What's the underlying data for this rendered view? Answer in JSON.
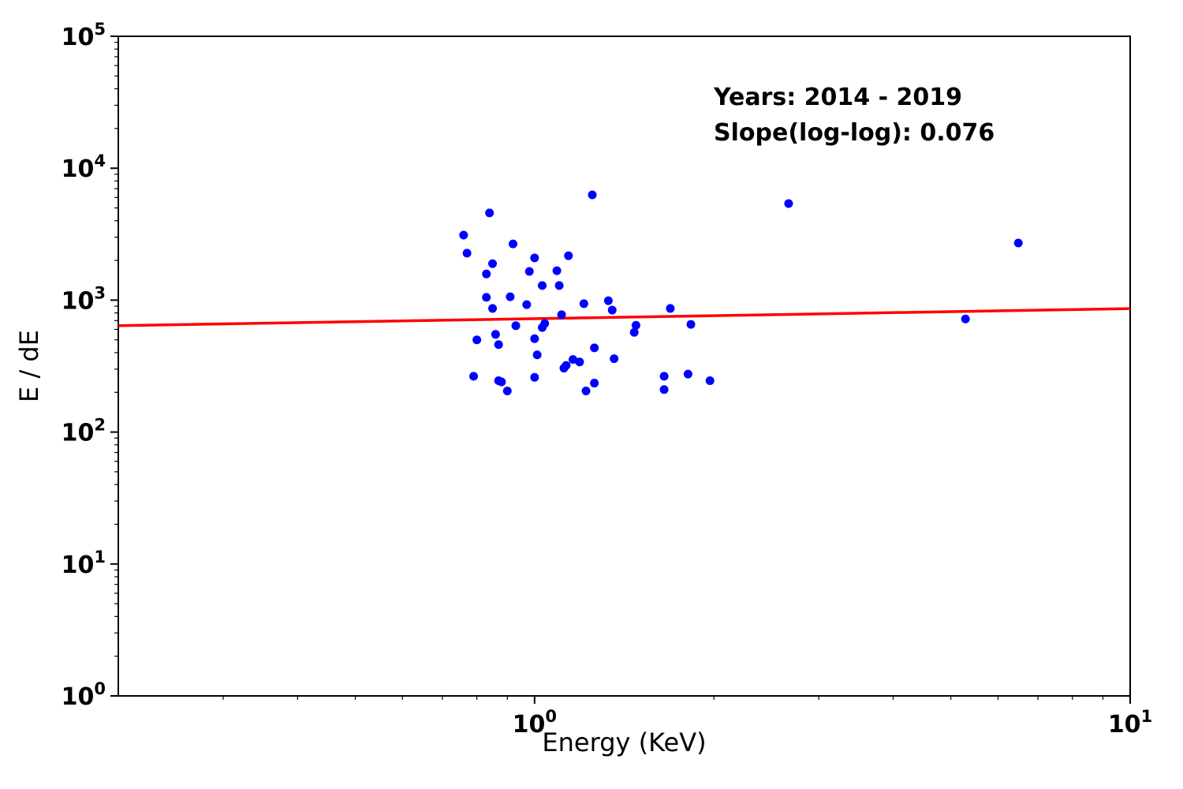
{
  "figure": {
    "background": "#ffffff",
    "annotation": {
      "line1": "Years: 2014 - 2019",
      "line2": "Slope(log-log): 0.076"
    }
  },
  "chart_data": {
    "type": "scatter",
    "title": "",
    "xlabel": "Energy (KeV)",
    "ylabel": "E / dE",
    "x_scale": "log",
    "y_scale": "log",
    "xlim": [
      0.2,
      10
    ],
    "ylim": [
      1,
      100000
    ],
    "grid": false,
    "tick_base": "10",
    "x_major_tick_exponents": [
      0,
      1
    ],
    "y_major_tick_exponents": [
      0,
      1,
      2,
      3,
      4,
      5
    ],
    "annotations": [
      "Years: 2014 - 2019",
      "Slope(log-log): 0.076"
    ],
    "colors": {
      "points": "#0000ff",
      "trendline": "#ff0000",
      "axes": "#000000",
      "text": "#000000"
    },
    "points": [
      [
        1.25,
        6280
      ],
      [
        0.84,
        4580
      ],
      [
        0.76,
        3110
      ],
      [
        0.92,
        2670
      ],
      [
        0.77,
        2270
      ],
      [
        1.0,
        2090
      ],
      [
        1.14,
        2170
      ],
      [
        0.85,
        1890
      ],
      [
        0.98,
        1650
      ],
      [
        1.09,
        1670
      ],
      [
        0.83,
        1580
      ],
      [
        1.03,
        1290
      ],
      [
        1.1,
        1290
      ],
      [
        0.83,
        1050
      ],
      [
        0.91,
        1060
      ],
      [
        0.85,
        865
      ],
      [
        0.97,
        925
      ],
      [
        1.21,
        940
      ],
      [
        1.33,
        990
      ],
      [
        1.35,
        840
      ],
      [
        1.11,
        775
      ],
      [
        0.93,
        640
      ],
      [
        1.03,
        620
      ],
      [
        1.04,
        665
      ],
      [
        1.48,
        645
      ],
      [
        1.47,
        570
      ],
      [
        0.8,
        500
      ],
      [
        0.86,
        550
      ],
      [
        0.87,
        460
      ],
      [
        1.0,
        510
      ],
      [
        1.69,
        865
      ],
      [
        1.83,
        655
      ],
      [
        1.26,
        435
      ],
      [
        1.01,
        385
      ],
      [
        1.16,
        355
      ],
      [
        1.19,
        340
      ],
      [
        1.12,
        305
      ],
      [
        1.13,
        320
      ],
      [
        1.36,
        360
      ],
      [
        0.79,
        265
      ],
      [
        0.87,
        245
      ],
      [
        0.88,
        240
      ],
      [
        1.0,
        260
      ],
      [
        1.26,
        235
      ],
      [
        1.65,
        265
      ],
      [
        1.81,
        275
      ],
      [
        1.97,
        245
      ],
      [
        0.9,
        205
      ],
      [
        1.22,
        205
      ],
      [
        1.65,
        210
      ],
      [
        2.67,
        5400
      ],
      [
        6.49,
        2710
      ],
      [
        5.29,
        720
      ]
    ],
    "trendline": {
      "x": [
        0.2,
        10
      ],
      "y": [
        640,
        862
      ],
      "slope_loglog": 0.076
    }
  }
}
